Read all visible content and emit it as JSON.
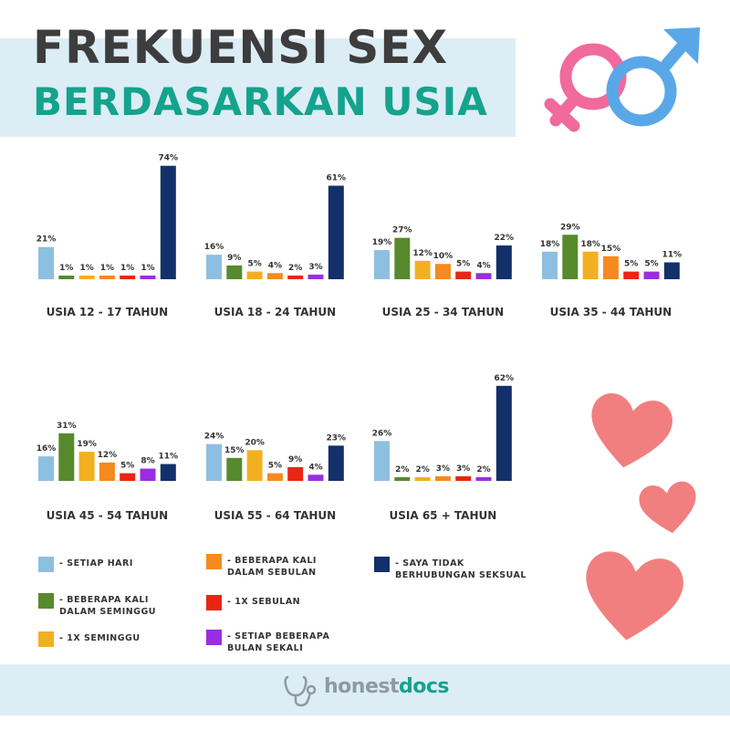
{
  "header": {
    "title_line1": "FREKUENSI SEX",
    "title_line2": "BERDASARKAN USIA"
  },
  "legend": [
    {
      "label": "- SETIAP HARI",
      "color": "#8dbfe0"
    },
    {
      "label": "- BEBERAPA KALI\nDALAM SEMINGGU",
      "color": "#568a2c"
    },
    {
      "label": "- 1X SEMINGGU",
      "color": "#f2b021"
    },
    {
      "label": "- BEBERAPA KALI\nDALAM SEBULAN",
      "color": "#f58a1f"
    },
    {
      "label": "- 1X SEBULAN",
      "color": "#e92614"
    },
    {
      "label": "- SETIAP BEBERAPA\nBULAN SEKALI",
      "color": "#9b2de0"
    },
    {
      "label": "- SAYA TIDAK\nBERHUBUNGAN SEKSUAL",
      "color": "#13306b"
    }
  ],
  "chart_data": {
    "type": "bar",
    "categories": [
      "SETIAP HARI",
      "BEBERAPA KALI DALAM SEMINGGU",
      "1X SEMINGGU",
      "BEBERAPA KALI DALAM SEBULAN",
      "1X SEBULAN",
      "SETIAP BEBERAPA BULAN SEKALI",
      "SAYA TIDAK BERHUBUNGAN SEKSUAL"
    ],
    "unit": "%",
    "groups": [
      {
        "label": "USIA 12 - 17 TAHUN",
        "values": [
          21,
          1,
          1,
          1,
          1,
          1,
          74
        ]
      },
      {
        "label": "USIA 18 - 24 TAHUN",
        "values": [
          16,
          9,
          5,
          4,
          2,
          3,
          61
        ]
      },
      {
        "label": "USIA 25 - 34 TAHUN",
        "values": [
          19,
          27,
          12,
          10,
          5,
          4,
          22
        ]
      },
      {
        "label": "USIA 35 - 44 TAHUN",
        "values": [
          18,
          29,
          18,
          15,
          5,
          5,
          11
        ]
      },
      {
        "label": "USIA 45 - 54 TAHUN",
        "values": [
          16,
          31,
          19,
          12,
          5,
          8,
          11
        ]
      },
      {
        "label": "USIA 55 - 64 TAHUN",
        "values": [
          24,
          15,
          20,
          5,
          9,
          4,
          23
        ]
      },
      {
        "label": "USIA 65 + TAHUN",
        "values": [
          26,
          2,
          2,
          3,
          3,
          2,
          62
        ]
      }
    ]
  },
  "footer": {
    "logo_part1": "honest",
    "logo_part2": "docs"
  }
}
